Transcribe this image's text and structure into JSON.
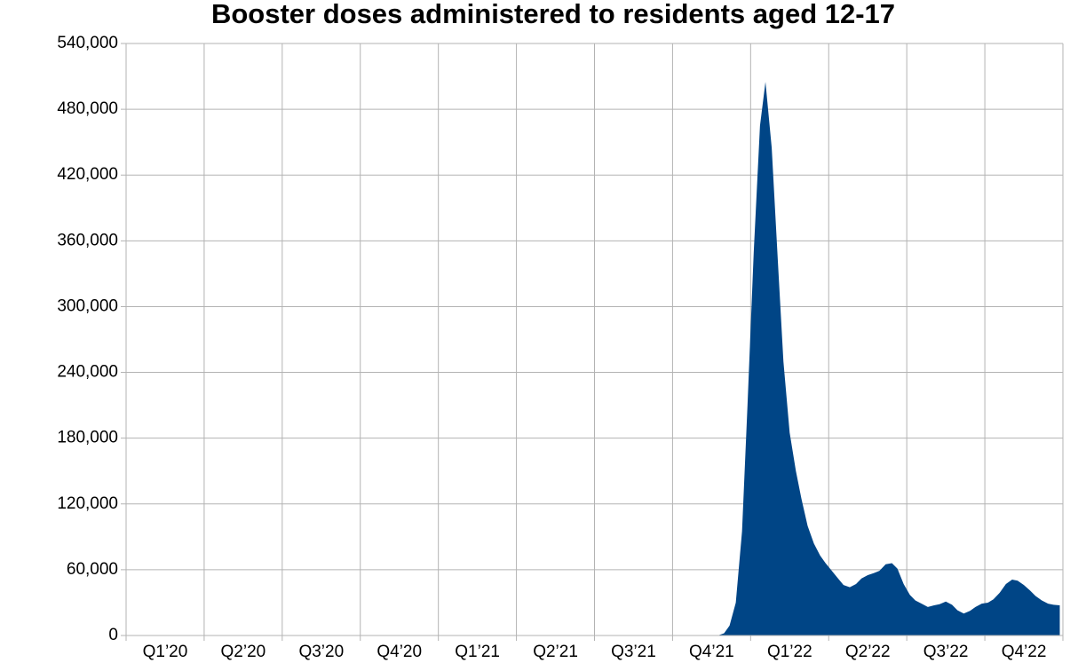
{
  "chart_data": {
    "type": "area",
    "title": "Booster doses administered to residents aged 12-17",
    "categories": [
      "Q1’20",
      "Q2’20",
      "Q3’20",
      "Q4’20",
      "Q1’21",
      "Q2’21",
      "Q3’21",
      "Q4’21",
      "Q1’22",
      "Q2’22",
      "Q3’22",
      "Q4’22"
    ],
    "xlim": [
      0,
      12
    ],
    "x": [
      7.58,
      7.66,
      7.73,
      7.81,
      7.89,
      7.96,
      8.04,
      8.12,
      8.19,
      8.27,
      8.35,
      8.42,
      8.5,
      8.58,
      8.65,
      8.73,
      8.81,
      8.89,
      8.96,
      9.04,
      9.12,
      9.19,
      9.27,
      9.35,
      9.42,
      9.5,
      9.58,
      9.65,
      9.73,
      9.81,
      9.88,
      9.96,
      10.04,
      10.11,
      10.19,
      10.27,
      10.35,
      10.42,
      10.5,
      10.58,
      10.65,
      10.73,
      10.81,
      10.88,
      10.96,
      11.04,
      11.11,
      11.19,
      11.27,
      11.35,
      11.42,
      11.5,
      11.58,
      11.65,
      11.73,
      11.81,
      11.88,
      11.96
    ],
    "values": [
      0,
      2000,
      9000,
      30000,
      95000,
      210000,
      350000,
      465000,
      505000,
      445000,
      340000,
      250000,
      185000,
      150000,
      125000,
      100000,
      84000,
      73000,
      66000,
      59000,
      52000,
      46000,
      44000,
      47000,
      52000,
      55000,
      57000,
      59000,
      65000,
      66000,
      61000,
      47000,
      37000,
      32000,
      29000,
      26000,
      27500,
      28500,
      31000,
      28000,
      23000,
      20000,
      22500,
      26000,
      29000,
      30000,
      33000,
      39000,
      47000,
      51000,
      50000,
      46000,
      41000,
      36000,
      32000,
      29000,
      28000,
      27500
    ],
    "color": "#004586",
    "ylim": [
      0,
      540000
    ],
    "yticks": [
      0,
      {
        "value": 60000,
        "label": "60,000"
      },
      {
        "value": 120000,
        "label": "120,000"
      },
      {
        "value": 180000,
        "label": "180,000"
      },
      {
        "value": 240000,
        "label": "240,000"
      },
      {
        "value": 300000,
        "label": "300,000"
      },
      {
        "value": 360000,
        "label": "360,000"
      },
      {
        "value": 420000,
        "label": "420,000"
      },
      {
        "value": 480000,
        "label": "480,000"
      },
      {
        "value": 540000,
        "label": "540,000"
      }
    ],
    "grid": true
  }
}
